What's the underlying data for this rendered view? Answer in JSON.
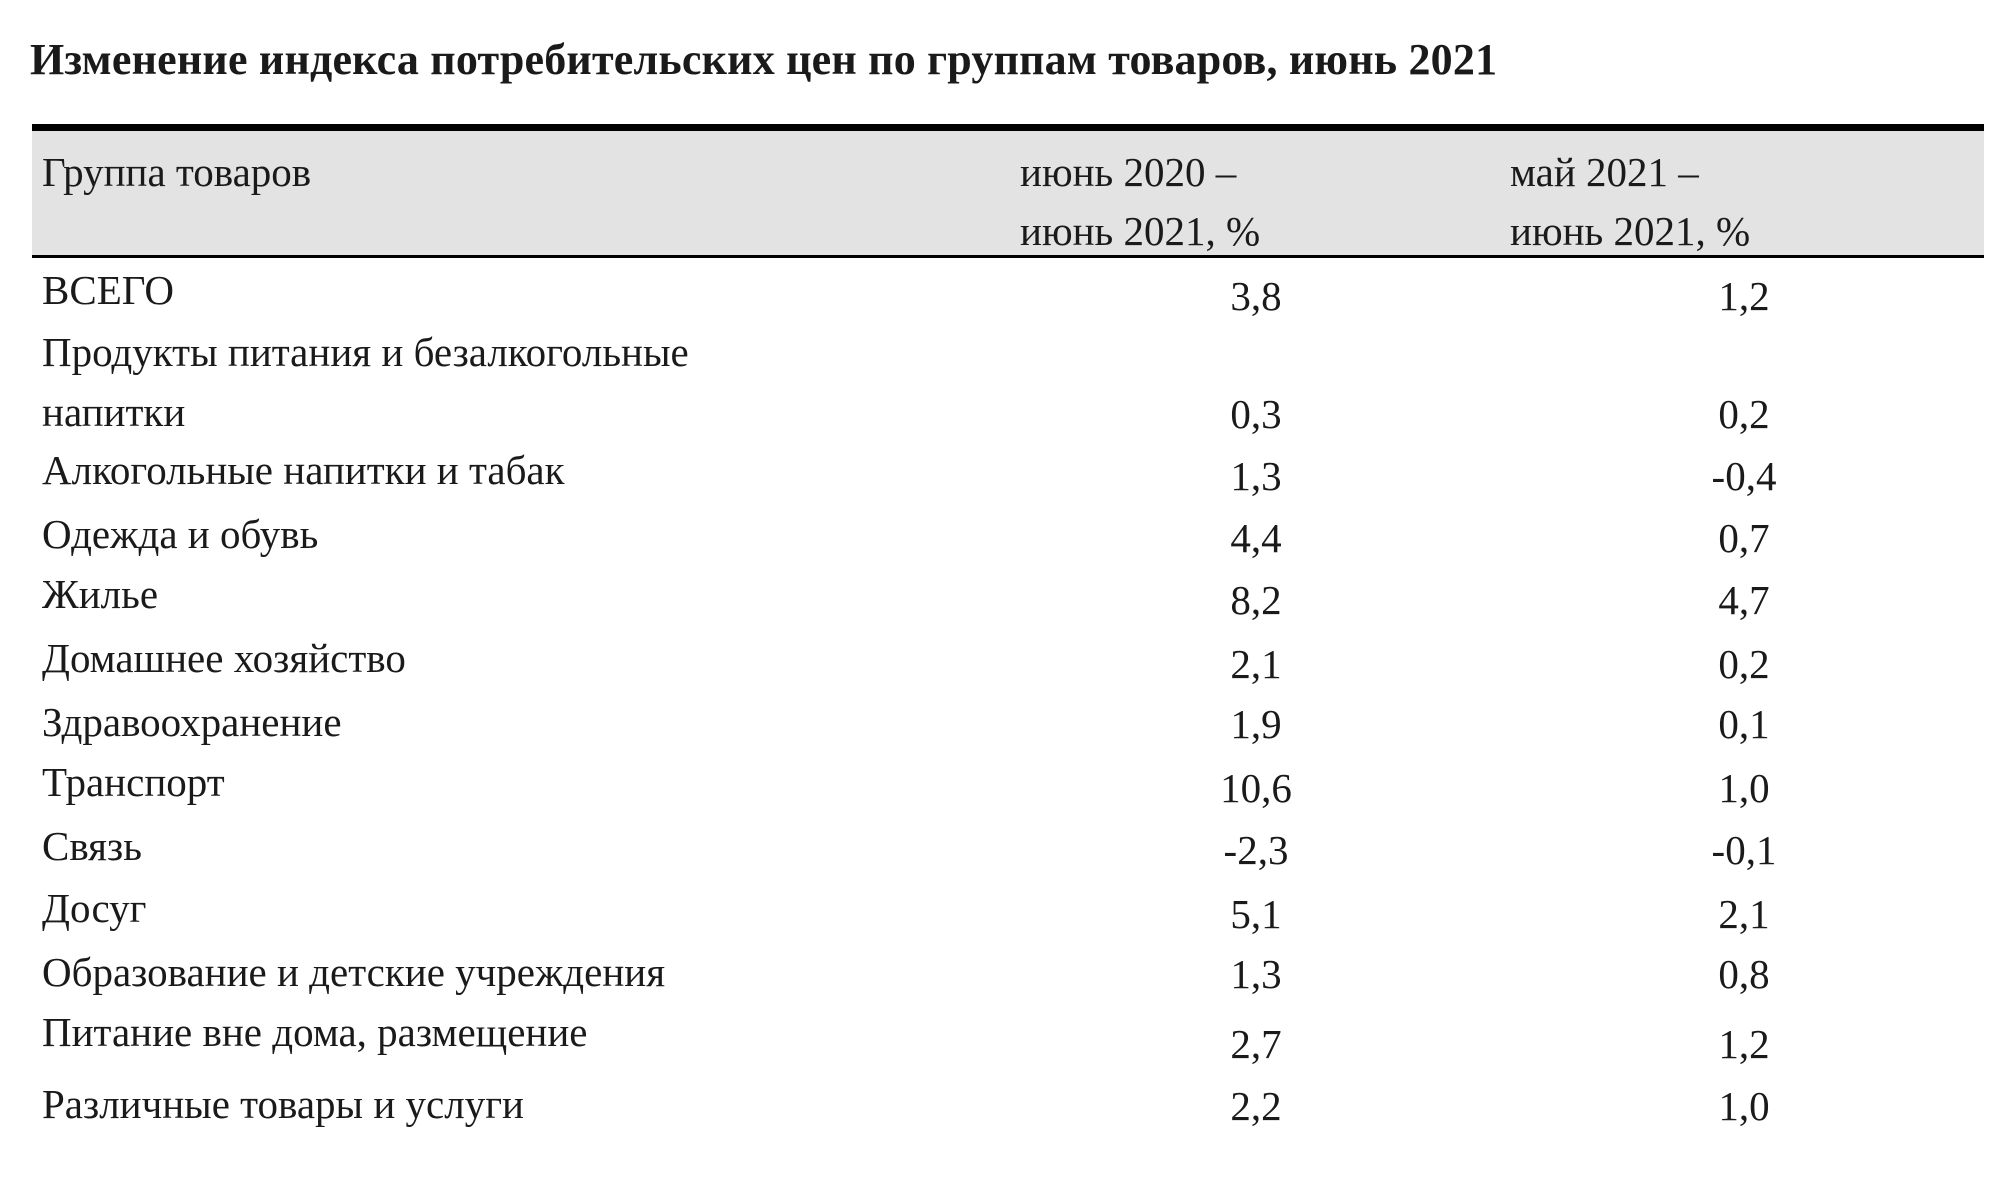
{
  "title": "Изменение индекса потребительских цен по группам товаров, июнь 2021",
  "table": {
    "headers": {
      "group": "Группа товаров",
      "col1_line1": "июнь 2020 –",
      "col1_line2": "июнь 2021, %",
      "col2_line1": "май 2021 –",
      "col2_line2": "июнь 2021, %"
    },
    "rows": [
      {
        "name": "ВСЕГО",
        "yoy": "3,8",
        "mom": "1,2"
      },
      {
        "name_line1": "Продукты питания и безалкогольные",
        "name": "напитки",
        "yoy": "0,3",
        "mom": "0,2"
      },
      {
        "name": "Алкогольные напитки и табак",
        "yoy": "1,3",
        "mom": "-0,4"
      },
      {
        "name": "Одежда и обувь",
        "yoy": "4,4",
        "mom": "0,7"
      },
      {
        "name": "Жилье",
        "yoy": "8,2",
        "mom": "4,7"
      },
      {
        "name": "Домашнее хозяйство",
        "yoy": "2,1",
        "mom": "0,2"
      },
      {
        "name": "Здравоохранение",
        "yoy": "1,9",
        "mom": "0,1"
      },
      {
        "name": "Транспорт",
        "yoy": "10,6",
        "mom": "1,0"
      },
      {
        "name": "Связь",
        "yoy": "-2,3",
        "mom": "-0,1"
      },
      {
        "name": "Досуг",
        "yoy": "5,1",
        "mom": "2,1"
      },
      {
        "name": "Образование и детские учреждения",
        "yoy": "1,3",
        "mom": "0,8"
      },
      {
        "name": "Питание вне дома, размещение",
        "yoy": "2,7",
        "mom": "1,2"
      },
      {
        "name": "Различные товары и услуги",
        "yoy": "2,2",
        "mom": "1,0"
      }
    ]
  }
}
